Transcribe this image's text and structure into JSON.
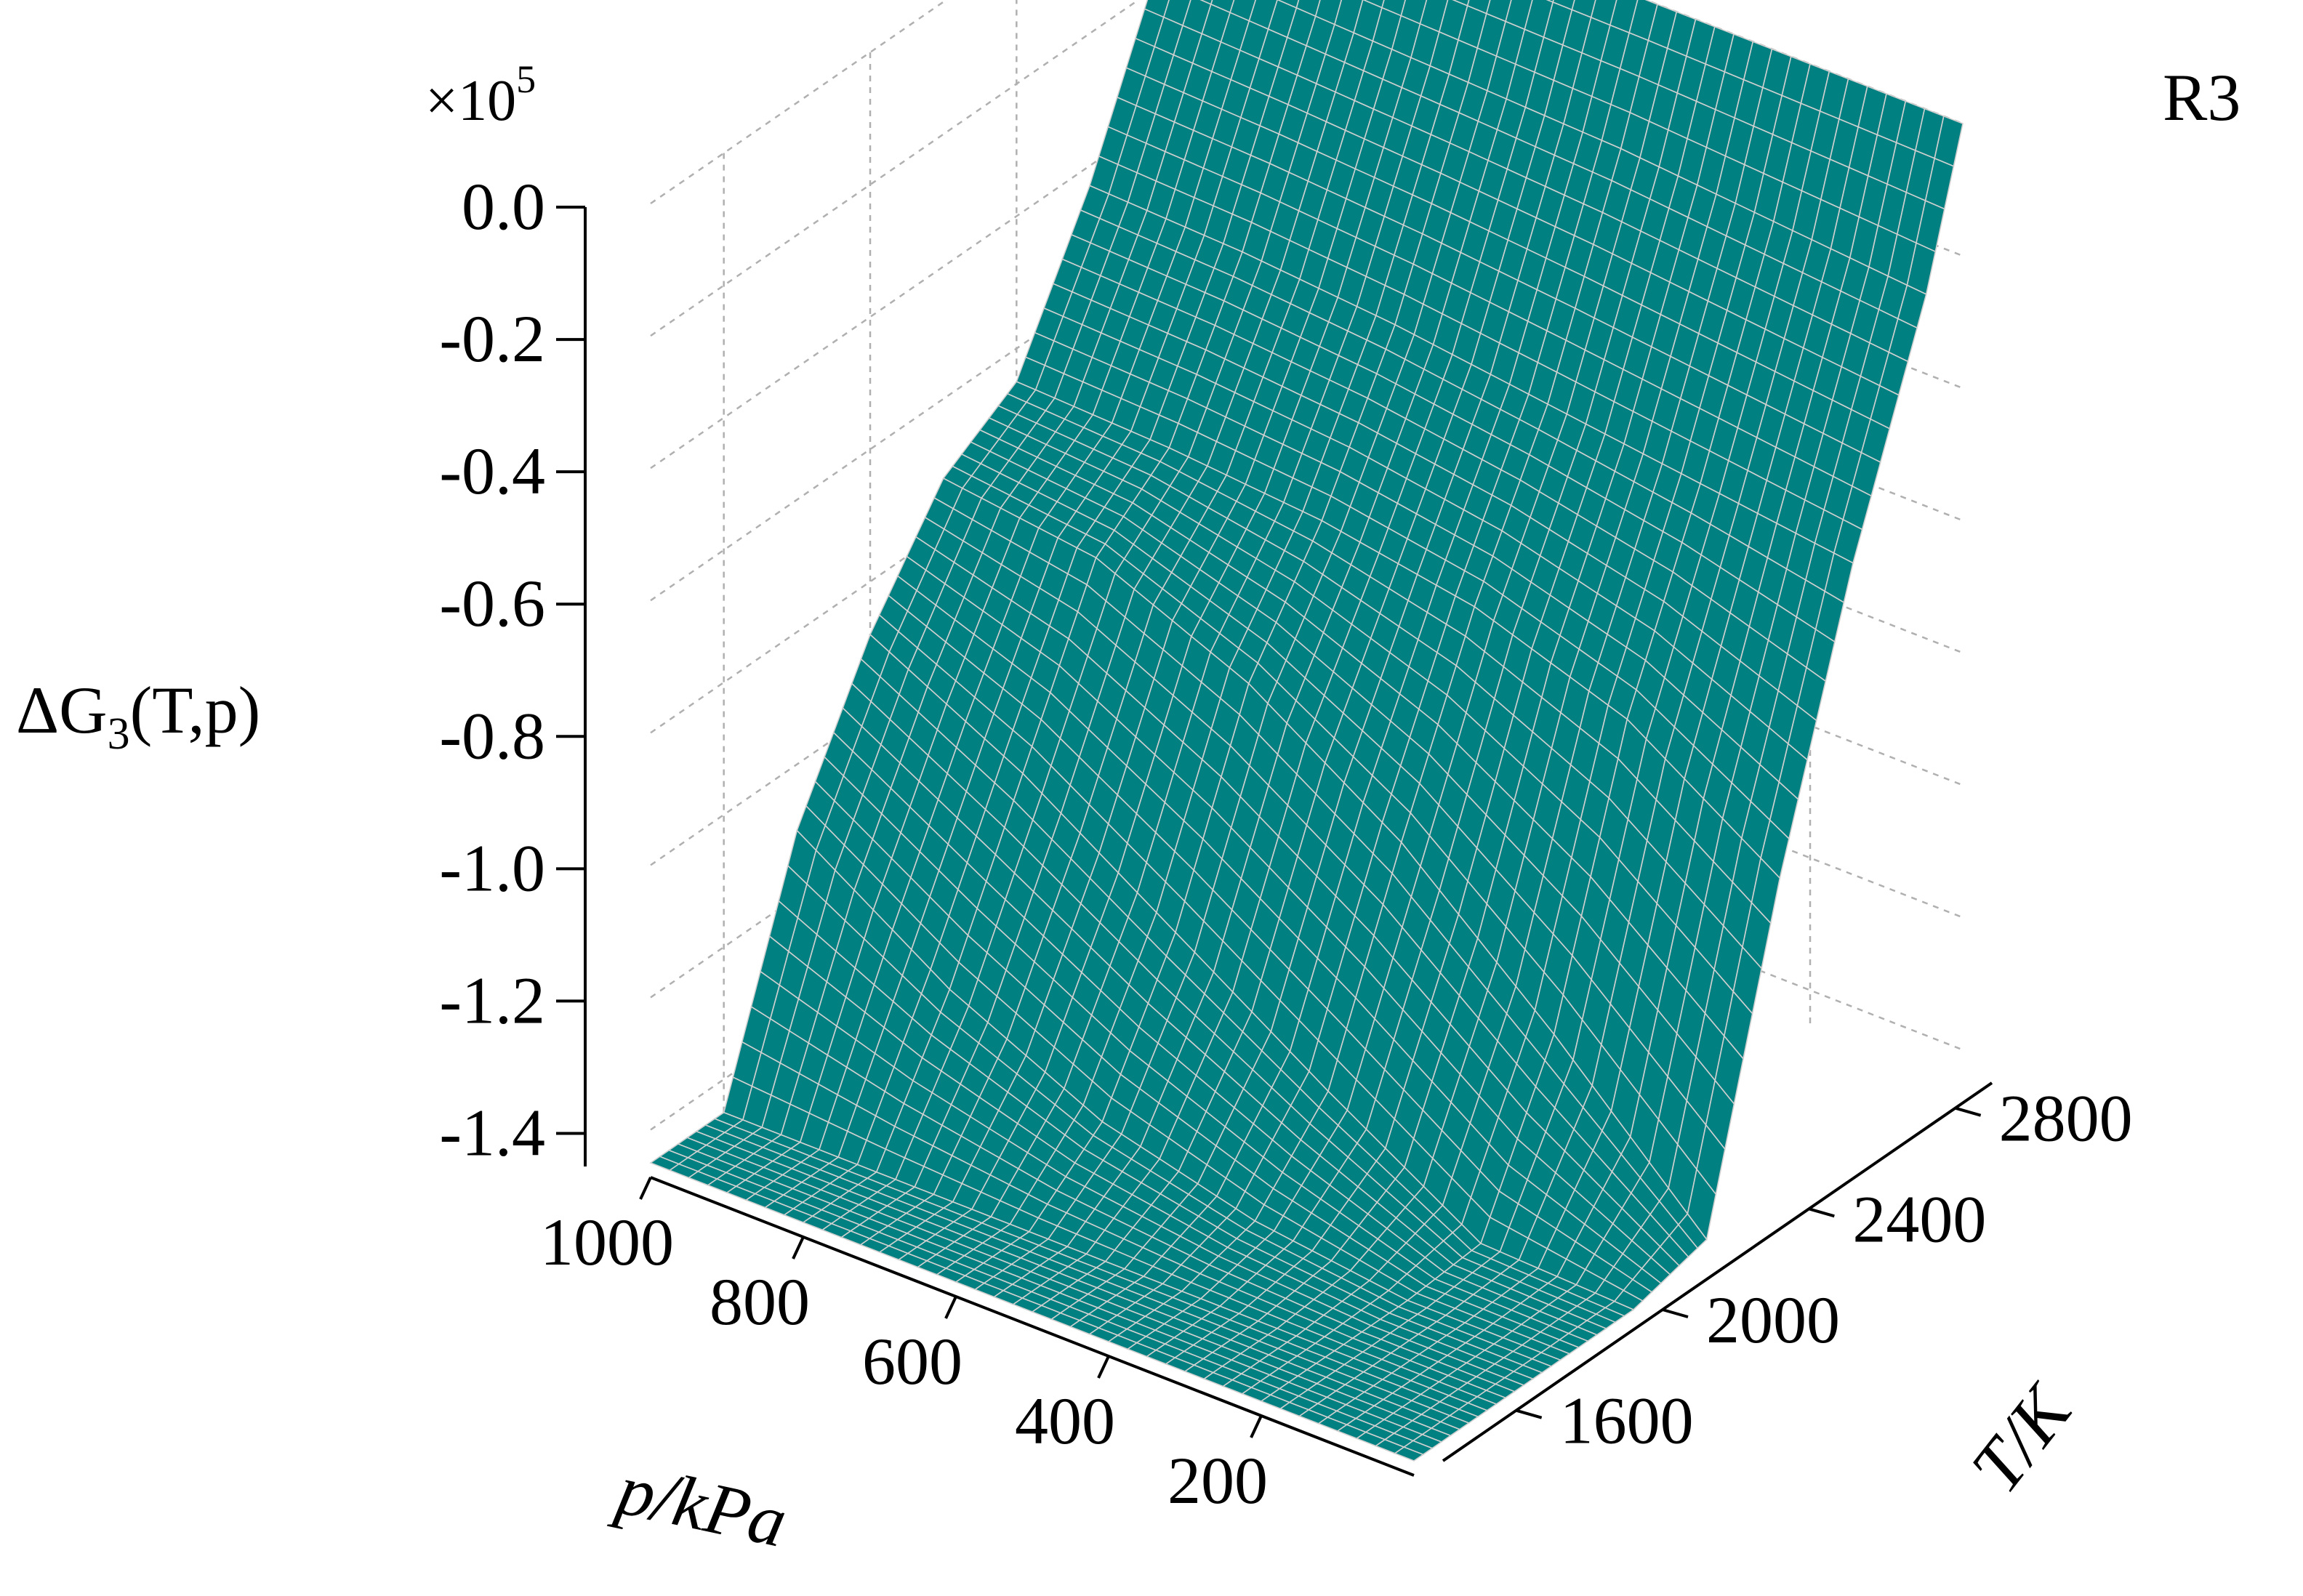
{
  "panel_label": "R3",
  "colors": {
    "surface": "#008080",
    "mesh": "#d0d0d0",
    "grid": "#b0b0b0",
    "axis": "#000000"
  },
  "chart_data": {
    "type": "surface",
    "title": "",
    "multiplier_label": "×10",
    "multiplier_exponent": "5",
    "z_label": {
      "prefix": "ΔG",
      "subscript": "3",
      "args": "(T,p)"
    },
    "x_label": "p/kPa",
    "y_label": "T/K",
    "z_ticks": [
      "0.0",
      "-0.2",
      "-0.4",
      "-0.6",
      "-0.8",
      "-1.0",
      "-1.2",
      "-1.4"
    ],
    "x_ticks": [
      "1000",
      "800",
      "600",
      "400",
      "200"
    ],
    "y_ticks": [
      "1600",
      "2000",
      "2400",
      "2800"
    ],
    "zlim": [
      -1.45,
      0.0
    ],
    "xlim": [
      0,
      1000
    ],
    "ylim": [
      1400,
      2900
    ],
    "grid": true,
    "surface_samples": {
      "T": [
        1400,
        1600,
        1800,
        2000,
        2200,
        2400,
        2600,
        2800,
        2900
      ],
      "p": [
        0,
        200,
        400,
        600,
        800,
        1000
      ],
      "dG": [
        [
          -1.45,
          -1.45,
          -1.45,
          -1.45,
          -1.45,
          -1.45
        ],
        [
          -1.45,
          -1.45,
          -1.45,
          -1.45,
          -1.45,
          -1.45
        ],
        [
          -1.45,
          -1.45,
          -1.42,
          -1.36,
          -1.25,
          -1.1
        ],
        [
          -1.45,
          -1.44,
          -1.3,
          -1.15,
          -1.0,
          -0.88
        ],
        [
          -1.42,
          -1.2,
          -1.0,
          -0.85,
          -0.75,
          -0.72
        ],
        [
          -0.95,
          -0.8,
          -0.72,
          -0.68,
          -0.66,
          -0.65
        ],
        [
          -0.55,
          -0.52,
          -0.49,
          -0.46,
          -0.44,
          -0.43
        ],
        [
          -0.22,
          -0.2,
          -0.18,
          -0.17,
          -0.16,
          -0.15
        ],
        [
          0.0,
          0.0,
          0.0,
          0.0,
          0.0,
          0.0
        ]
      ]
    }
  }
}
